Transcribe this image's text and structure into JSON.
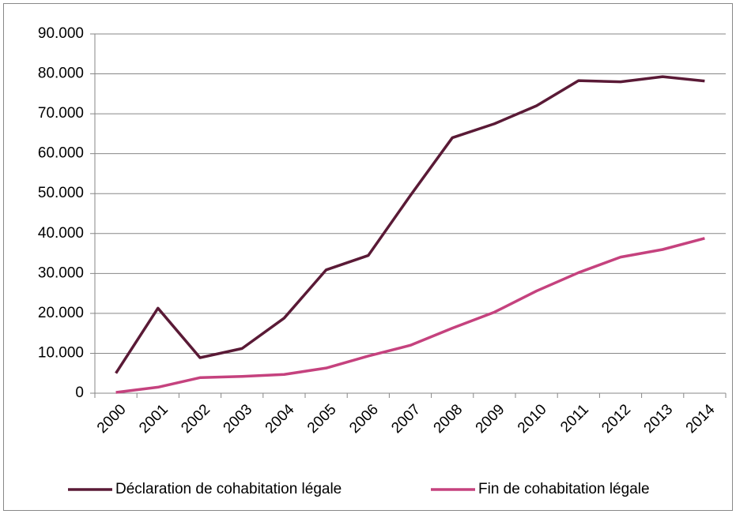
{
  "chart_data": {
    "type": "line",
    "categories": [
      "2000",
      "2001",
      "2002",
      "2003",
      "2004",
      "2005",
      "2006",
      "2007",
      "2008",
      "2009",
      "2010",
      "2011",
      "2012",
      "2013",
      "2014"
    ],
    "series": [
      {
        "name": "Déclaration de cohabitation légale",
        "color": "#5a1a36",
        "values": [
          5000,
          21300,
          8900,
          11200,
          18800,
          30900,
          34500,
          49500,
          64000,
          67500,
          72000,
          78300,
          78000,
          79300,
          78200
        ]
      },
      {
        "name": "Fin de cohabitation légale",
        "color": "#c5427e",
        "values": [
          200,
          1500,
          3900,
          4200,
          4700,
          6300,
          9300,
          12000,
          16300,
          20300,
          25600,
          30200,
          34100,
          36000,
          38800
        ]
      }
    ],
    "ylim": [
      0,
      90000
    ],
    "yticks": [
      0,
      {
        "value": 10000,
        "label": "10.000"
      },
      {
        "value": 20000,
        "label": "20.000"
      },
      {
        "value": 30000,
        "label": "30.000"
      },
      {
        "value": 40000,
        "label": "40.000"
      },
      {
        "value": 50000,
        "label": "50.000"
      },
      {
        "value": 60000,
        "label": "60.000"
      },
      {
        "value": 70000,
        "label": "70.000"
      },
      {
        "value": 80000,
        "label": "80.000"
      },
      {
        "value": 90000,
        "label": "90.000"
      }
    ],
    "grid": true,
    "legend": "bottom"
  }
}
